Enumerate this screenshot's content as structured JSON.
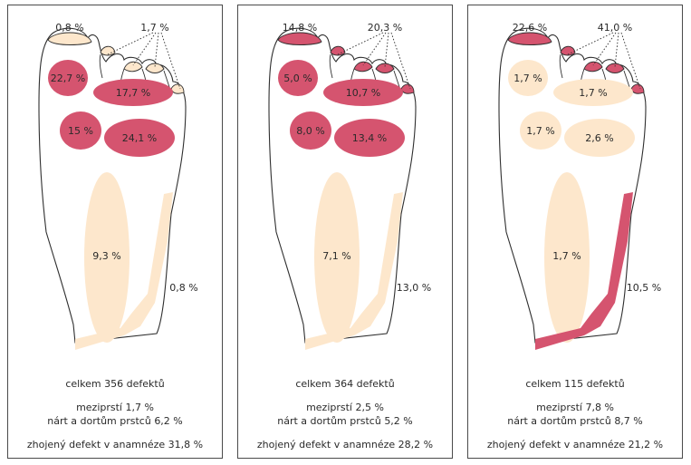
{
  "colors": {
    "light": "#fde7cc",
    "dark": "#d5546f",
    "outline": "#2f2f2f"
  },
  "panels": [
    {
      "values": {
        "little_toe_nail": "0,8 %",
        "toes_nails": "1,7 %",
        "big_toe_pad": "22,7 %",
        "interdigital": "17,7 %",
        "ball_left": "15 %",
        "ball_right": "24,1 %",
        "heel": "9,3 %",
        "edge": "0,8 %"
      },
      "fills": {
        "little_toe_nail": "light",
        "toes_nails": "light",
        "big_toe_pad": "dark",
        "interdigital": "dark",
        "ball_left": "dark",
        "ball_right": "dark",
        "heel": "light",
        "edge": "light"
      },
      "total": "celkem 356 defektů",
      "interdigital_line": "meziprstí  1,7 %",
      "dorsum_line": "nárt a dortům prstců 6,2 %",
      "healed_line": "zhojený defekt v anamnéze 31,8 %"
    },
    {
      "values": {
        "little_toe_nail": "14,8 %",
        "toes_nails": "20,3 %",
        "big_toe_pad": "5,0 %",
        "interdigital": "10,7 %",
        "ball_left": "8,0 %",
        "ball_right": "13,4 %",
        "heel": "7,1 %",
        "edge": "13,0 %"
      },
      "fills": {
        "little_toe_nail": "dark",
        "toes_nails": "dark",
        "big_toe_pad": "dark",
        "interdigital": "dark",
        "ball_left": "dark",
        "ball_right": "dark",
        "heel": "light",
        "edge": "light"
      },
      "total": "celkem 364 defektů",
      "interdigital_line": "meziprstí 2,5 %",
      "dorsum_line": "nárt a dortům prstců 5,2 %",
      "healed_line": "zhojený defekt v anamnéze 28,2 %"
    },
    {
      "values": {
        "little_toe_nail": "22,6 %",
        "toes_nails": "41,0 %",
        "big_toe_pad": "1,7 %",
        "interdigital": "1,7 %",
        "ball_left": "1,7 %",
        "ball_right": "2,6 %",
        "heel": "1,7 %",
        "edge": "10,5 %"
      },
      "fills": {
        "little_toe_nail": "dark",
        "toes_nails": "dark",
        "big_toe_pad": "light",
        "interdigital": "light",
        "ball_left": "light",
        "ball_right": "light",
        "heel": "light",
        "edge": "dark"
      },
      "total": "celkem 115 defektů",
      "interdigital_line": "meziprstí 7,8 %",
      "dorsum_line": "nárt a dortům prstců 8,7 %",
      "healed_line": "zhojený defekt v anamnéze 21,2 %"
    }
  ]
}
